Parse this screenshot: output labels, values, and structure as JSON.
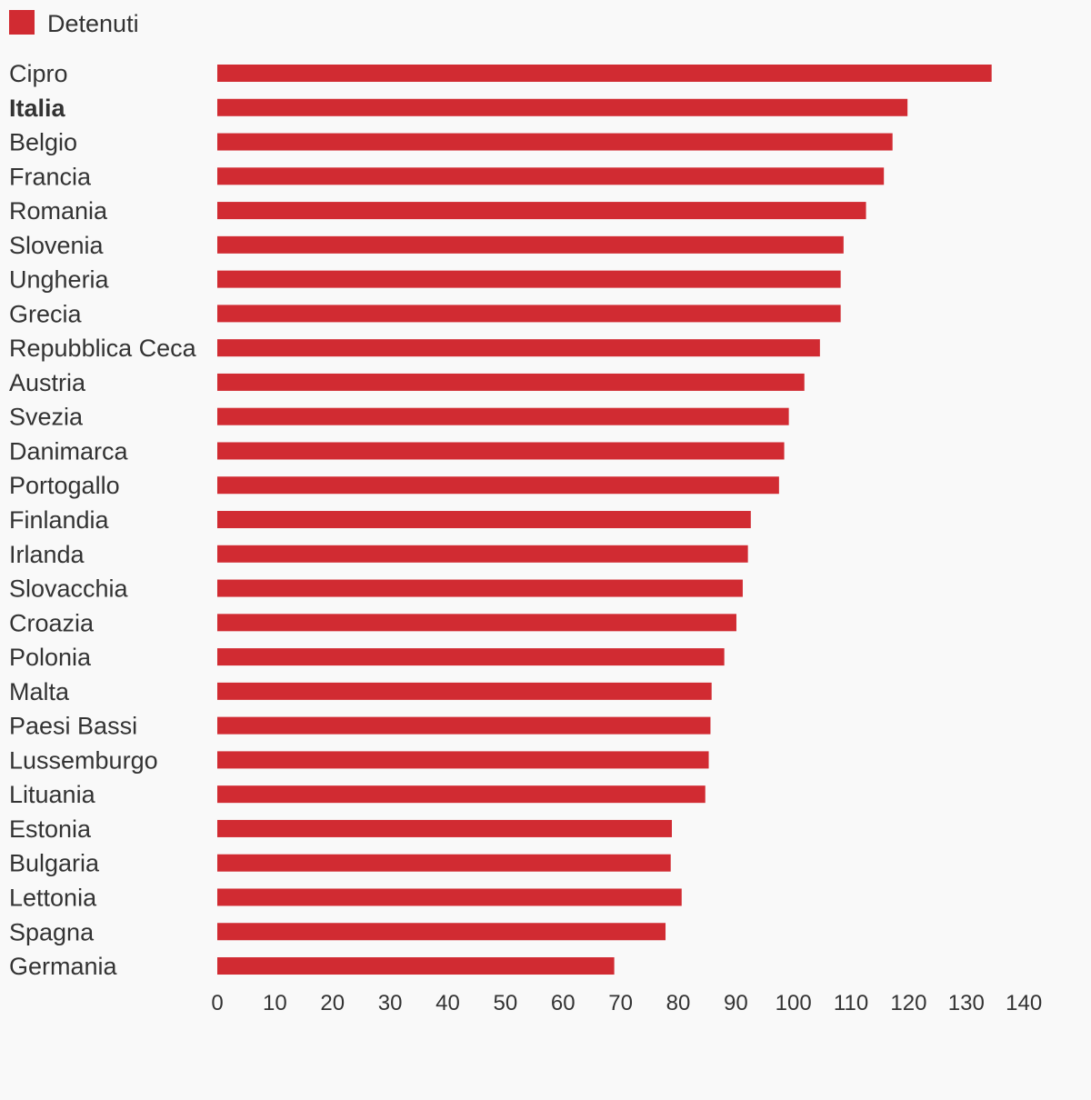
{
  "legend": {
    "label": "Detenuti",
    "color": "#d12b32"
  },
  "chart_data": {
    "type": "bar",
    "orientation": "horizontal",
    "categories": [
      "Cipro",
      "Italia",
      "Belgio",
      "Francia",
      "Romania",
      "Slovenia",
      "Ungheria",
      "Grecia",
      "Repubblica Ceca",
      "Austria",
      "Svezia",
      "Danimarca",
      "Portogallo",
      "Finlandia",
      "Irlanda",
      "Slovacchia",
      "Croazia",
      "Polonia",
      "Malta",
      "Paesi Bassi",
      "Lussemburgo",
      "Lituania",
      "Estonia",
      "Bulgaria",
      "Lettonia",
      "Spagna",
      "Germania"
    ],
    "highlighted_category": "Italia",
    "series": [
      {
        "name": "Detenuti",
        "color": "#d12b32",
        "values": [
          134.4,
          119.8,
          117.2,
          115.7,
          112.6,
          108.7,
          108.2,
          108.2,
          104.6,
          101.9,
          99.2,
          98.4,
          97.5,
          92.6,
          92.1,
          91.2,
          90.1,
          88.0,
          85.8,
          85.6,
          85.3,
          84.7,
          78.9,
          78.7,
          80.6,
          77.8,
          68.9
        ]
      }
    ],
    "xlim": [
      0,
      140
    ],
    "xticks": [
      0,
      10,
      20,
      30,
      40,
      50,
      60,
      70,
      80,
      90,
      100,
      110,
      120,
      130,
      140
    ],
    "title": "",
    "xlabel": "",
    "ylabel": "",
    "grid": false,
    "legend_position": "top-left"
  }
}
